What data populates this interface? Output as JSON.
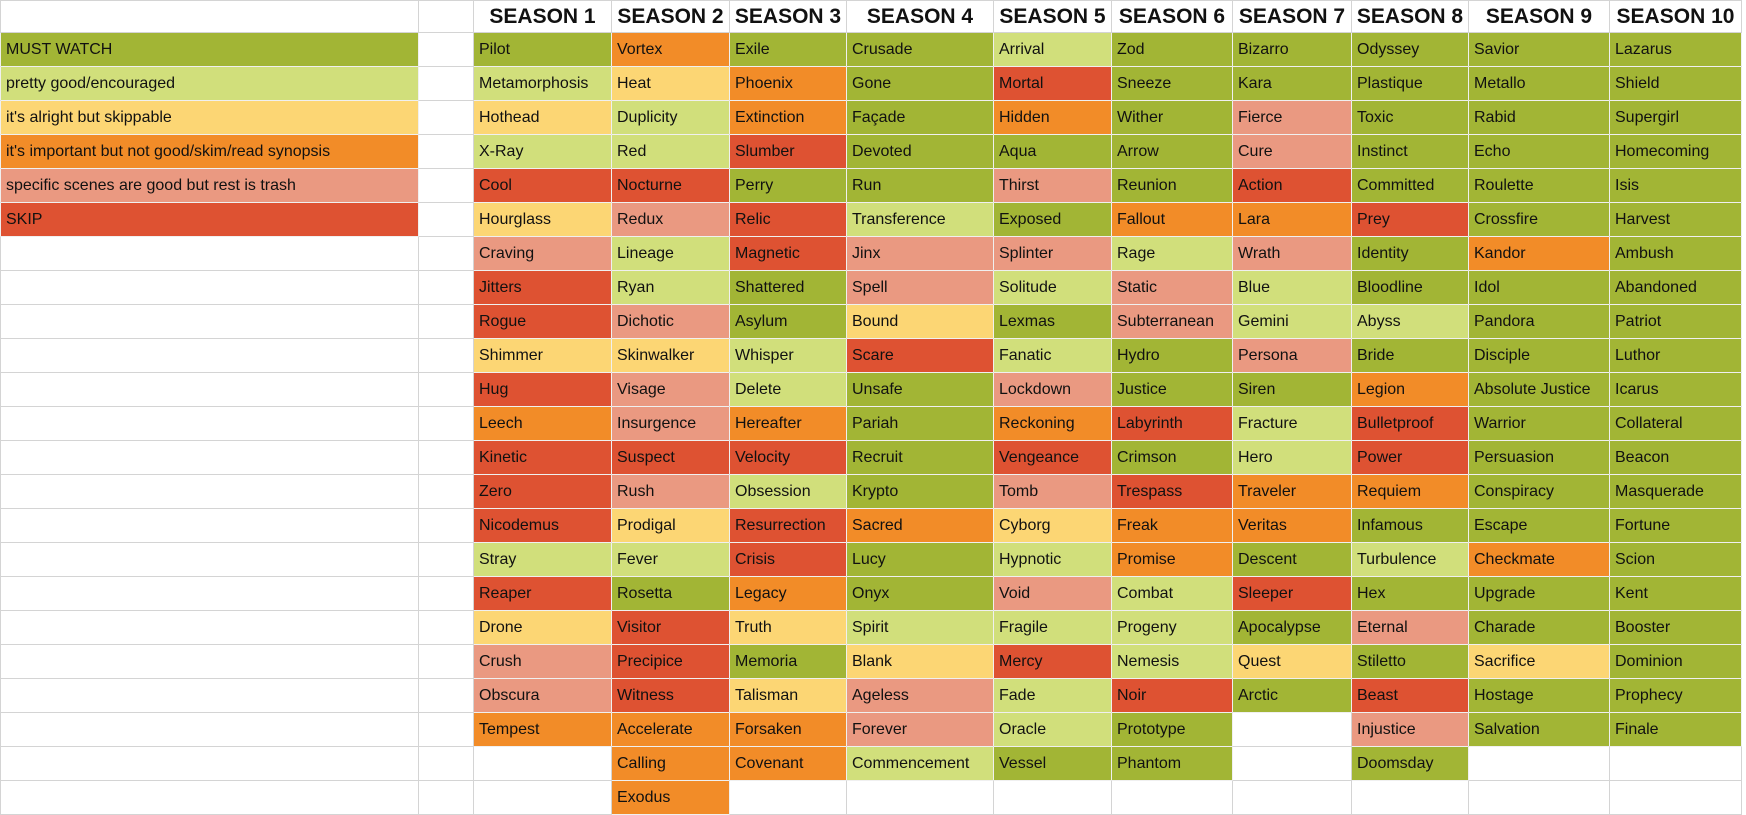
{
  "headers": [
    "SEASON 1",
    "SEASON 2",
    "SEASON 3",
    "SEASON 4",
    "SEASON 5",
    "SEASON 6",
    "SEASON 7",
    "SEASON 8",
    "SEASON 9",
    "SEASON 10"
  ],
  "ratings": {
    "mw": {
      "label": "MUST WATCH",
      "color": "#a2b535"
    },
    "pg": {
      "label": "pretty good/encouraged",
      "color": "#d1df7b"
    },
    "ok": {
      "label": "it's alright but skippable",
      "color": "#fcd674"
    },
    "imp": {
      "label": "it's important but not good/skim/read synopsis",
      "color": "#f28c28"
    },
    "sc": {
      "label": "specific scenes are good but rest is trash",
      "color": "#ea9981"
    },
    "sk": {
      "label": "SKIP",
      "color": "#de5232"
    }
  },
  "legend_order": [
    "mw",
    "pg",
    "ok",
    "imp",
    "sc",
    "sk"
  ],
  "seasons": [
    [
      [
        "Pilot",
        "mw"
      ],
      [
        "Metamorphosis",
        "pg"
      ],
      [
        "Hothead",
        "ok"
      ],
      [
        "X-Ray",
        "pg"
      ],
      [
        "Cool",
        "sk"
      ],
      [
        "Hourglass",
        "ok"
      ],
      [
        "Craving",
        "sc"
      ],
      [
        "Jitters",
        "sk"
      ],
      [
        "Rogue",
        "sk"
      ],
      [
        "Shimmer",
        "ok"
      ],
      [
        "Hug",
        "sk"
      ],
      [
        "Leech",
        "imp"
      ],
      [
        "Kinetic",
        "sk"
      ],
      [
        "Zero",
        "sk"
      ],
      [
        "Nicodemus",
        "sk"
      ],
      [
        "Stray",
        "pg"
      ],
      [
        "Reaper",
        "sk"
      ],
      [
        "Drone",
        "ok"
      ],
      [
        "Crush",
        "sc"
      ],
      [
        "Obscura",
        "sc"
      ],
      [
        "Tempest",
        "imp"
      ]
    ],
    [
      [
        "Vortex",
        "imp"
      ],
      [
        "Heat",
        "ok"
      ],
      [
        "Duplicity",
        "pg"
      ],
      [
        "Red",
        "pg"
      ],
      [
        "Nocturne",
        "sk"
      ],
      [
        "Redux",
        "sc"
      ],
      [
        "Lineage",
        "pg"
      ],
      [
        "Ryan",
        "pg"
      ],
      [
        "Dichotic",
        "sc"
      ],
      [
        "Skinwalker",
        "ok"
      ],
      [
        "Visage",
        "sc"
      ],
      [
        "Insurgence",
        "sc"
      ],
      [
        "Suspect",
        "sk"
      ],
      [
        "Rush",
        "sc"
      ],
      [
        "Prodigal",
        "ok"
      ],
      [
        "Fever",
        "pg"
      ],
      [
        "Rosetta",
        "mw"
      ],
      [
        "Visitor",
        "sk"
      ],
      [
        "Precipice",
        "sk"
      ],
      [
        "Witness",
        "sk"
      ],
      [
        "Accelerate",
        "imp"
      ],
      [
        "Calling",
        "imp"
      ],
      [
        "Exodus",
        "imp"
      ]
    ],
    [
      [
        "Exile",
        "mw"
      ],
      [
        "Phoenix",
        "imp"
      ],
      [
        "Extinction",
        "imp"
      ],
      [
        "Slumber",
        "sk"
      ],
      [
        "Perry",
        "mw"
      ],
      [
        "Relic",
        "sk"
      ],
      [
        "Magnetic",
        "sk"
      ],
      [
        "Shattered",
        "mw"
      ],
      [
        "Asylum",
        "mw"
      ],
      [
        "Whisper",
        "pg"
      ],
      [
        "Delete",
        "pg"
      ],
      [
        "Hereafter",
        "imp"
      ],
      [
        "Velocity",
        "sk"
      ],
      [
        "Obsession",
        "pg"
      ],
      [
        "Resurrection",
        "sk"
      ],
      [
        "Crisis",
        "sk"
      ],
      [
        "Legacy",
        "imp"
      ],
      [
        "Truth",
        "ok"
      ],
      [
        "Memoria",
        "mw"
      ],
      [
        "Talisman",
        "ok"
      ],
      [
        "Forsaken",
        "imp"
      ],
      [
        "Covenant",
        "imp"
      ]
    ],
    [
      [
        "Crusade",
        "mw"
      ],
      [
        "Gone",
        "mw"
      ],
      [
        "Façade",
        "mw"
      ],
      [
        "Devoted",
        "mw"
      ],
      [
        "Run",
        "mw"
      ],
      [
        "Transference",
        "pg"
      ],
      [
        "Jinx",
        "sc"
      ],
      [
        "Spell",
        "sc"
      ],
      [
        "Bound",
        "ok"
      ],
      [
        "Scare",
        "sk"
      ],
      [
        "Unsafe",
        "mw"
      ],
      [
        "Pariah",
        "mw"
      ],
      [
        "Recruit",
        "mw"
      ],
      [
        "Krypto",
        "mw"
      ],
      [
        "Sacred",
        "imp"
      ],
      [
        "Lucy",
        "mw"
      ],
      [
        "Onyx",
        "mw"
      ],
      [
        "Spirit",
        "pg"
      ],
      [
        "Blank",
        "ok"
      ],
      [
        "Ageless",
        "sc"
      ],
      [
        "Forever",
        "sc"
      ],
      [
        "Commencement",
        "pg"
      ]
    ],
    [
      [
        "Arrival",
        "pg"
      ],
      [
        "Mortal",
        "sk"
      ],
      [
        "Hidden",
        "imp"
      ],
      [
        "Aqua",
        "mw"
      ],
      [
        "Thirst",
        "sc"
      ],
      [
        "Exposed",
        "mw"
      ],
      [
        "Splinter",
        "sc"
      ],
      [
        "Solitude",
        "pg"
      ],
      [
        "Lexmas",
        "mw"
      ],
      [
        "Fanatic",
        "pg"
      ],
      [
        "Lockdown",
        "sc"
      ],
      [
        "Reckoning",
        "imp"
      ],
      [
        "Vengeance",
        "sk"
      ],
      [
        "Tomb",
        "sc"
      ],
      [
        "Cyborg",
        "ok"
      ],
      [
        "Hypnotic",
        "pg"
      ],
      [
        "Void",
        "sc"
      ],
      [
        "Fragile",
        "pg"
      ],
      [
        "Mercy",
        "sk"
      ],
      [
        "Fade",
        "pg"
      ],
      [
        "Oracle",
        "pg"
      ],
      [
        "Vessel",
        "mw"
      ]
    ],
    [
      [
        "Zod",
        "mw"
      ],
      [
        "Sneeze",
        "mw"
      ],
      [
        "Wither",
        "mw"
      ],
      [
        "Arrow",
        "mw"
      ],
      [
        "Reunion",
        "mw"
      ],
      [
        "Fallout",
        "imp"
      ],
      [
        "Rage",
        "pg"
      ],
      [
        "Static",
        "sc"
      ],
      [
        "Subterranean",
        "sc"
      ],
      [
        "Hydro",
        "mw"
      ],
      [
        "Justice",
        "mw"
      ],
      [
        "Labyrinth",
        "sk"
      ],
      [
        "Crimson",
        "mw"
      ],
      [
        "Trespass",
        "sk"
      ],
      [
        "Freak",
        "imp"
      ],
      [
        "Promise",
        "imp"
      ],
      [
        "Combat",
        "pg"
      ],
      [
        "Progeny",
        "pg"
      ],
      [
        "Nemesis",
        "pg"
      ],
      [
        "Noir",
        "sk"
      ],
      [
        "Prototype",
        "mw"
      ],
      [
        "Phantom",
        "mw"
      ]
    ],
    [
      [
        "Bizarro",
        "mw"
      ],
      [
        "Kara",
        "mw"
      ],
      [
        "Fierce",
        "sc"
      ],
      [
        "Cure",
        "sc"
      ],
      [
        "Action",
        "sk"
      ],
      [
        "Lara",
        "imp"
      ],
      [
        "Wrath",
        "sc"
      ],
      [
        "Blue",
        "pg"
      ],
      [
        "Gemini",
        "pg"
      ],
      [
        "Persona",
        "sc"
      ],
      [
        "Siren",
        "mw"
      ],
      [
        "Fracture",
        "pg"
      ],
      [
        "Hero",
        "pg"
      ],
      [
        "Traveler",
        "imp"
      ],
      [
        "Veritas",
        "imp"
      ],
      [
        "Descent",
        "mw"
      ],
      [
        "Sleeper",
        "sk"
      ],
      [
        "Apocalypse",
        "mw"
      ],
      [
        "Quest",
        "ok"
      ],
      [
        "Arctic",
        "mw"
      ]
    ],
    [
      [
        "Odyssey",
        "mw"
      ],
      [
        "Plastique",
        "mw"
      ],
      [
        "Toxic",
        "mw"
      ],
      [
        "Instinct",
        "mw"
      ],
      [
        "Committed",
        "mw"
      ],
      [
        "Prey",
        "sk"
      ],
      [
        "Identity",
        "mw"
      ],
      [
        "Bloodline",
        "mw"
      ],
      [
        "Abyss",
        "pg"
      ],
      [
        "Bride",
        "mw"
      ],
      [
        "Legion",
        "imp"
      ],
      [
        "Bulletproof",
        "sk"
      ],
      [
        "Power",
        "sk"
      ],
      [
        "Requiem",
        "imp"
      ],
      [
        "Infamous",
        "mw"
      ],
      [
        "Turbulence",
        "pg"
      ],
      [
        "Hex",
        "mw"
      ],
      [
        "Eternal",
        "sc"
      ],
      [
        "Stiletto",
        "mw"
      ],
      [
        "Beast",
        "sk"
      ],
      [
        "Injustice",
        "sc"
      ],
      [
        "Doomsday",
        "mw"
      ]
    ],
    [
      [
        "Savior",
        "mw"
      ],
      [
        "Metallo",
        "mw"
      ],
      [
        "Rabid",
        "mw"
      ],
      [
        "Echo",
        "mw"
      ],
      [
        "Roulette",
        "mw"
      ],
      [
        "Crossfire",
        "mw"
      ],
      [
        "Kandor",
        "imp"
      ],
      [
        "Idol",
        "mw"
      ],
      [
        "Pandora",
        "mw"
      ],
      [
        "Disciple",
        "mw"
      ],
      [
        "Absolute Justice",
        "mw"
      ],
      [
        "Warrior",
        "mw"
      ],
      [
        "Persuasion",
        "mw"
      ],
      [
        "Conspiracy",
        "mw"
      ],
      [
        "Escape",
        "mw"
      ],
      [
        "Checkmate",
        "imp"
      ],
      [
        "Upgrade",
        "mw"
      ],
      [
        "Charade",
        "mw"
      ],
      [
        "Sacrifice",
        "ok"
      ],
      [
        "Hostage",
        "mw"
      ],
      [
        "Salvation",
        "mw"
      ]
    ],
    [
      [
        "Lazarus",
        "mw"
      ],
      [
        "Shield",
        "mw"
      ],
      [
        "Supergirl",
        "mw"
      ],
      [
        "Homecoming",
        "mw"
      ],
      [
        "Isis",
        "mw"
      ],
      [
        "Harvest",
        "mw"
      ],
      [
        "Ambush",
        "mw"
      ],
      [
        "Abandoned",
        "mw"
      ],
      [
        "Patriot",
        "mw"
      ],
      [
        "Luthor",
        "mw"
      ],
      [
        "Icarus",
        "mw"
      ],
      [
        "Collateral",
        "mw"
      ],
      [
        "Beacon",
        "mw"
      ],
      [
        "Masquerade",
        "mw"
      ],
      [
        "Fortune",
        "mw"
      ],
      [
        "Scion",
        "mw"
      ],
      [
        "Kent",
        "mw"
      ],
      [
        "Booster",
        "mw"
      ],
      [
        "Dominion",
        "mw"
      ],
      [
        "Prophecy",
        "mw"
      ],
      [
        "Finale",
        "mw"
      ]
    ]
  ]
}
